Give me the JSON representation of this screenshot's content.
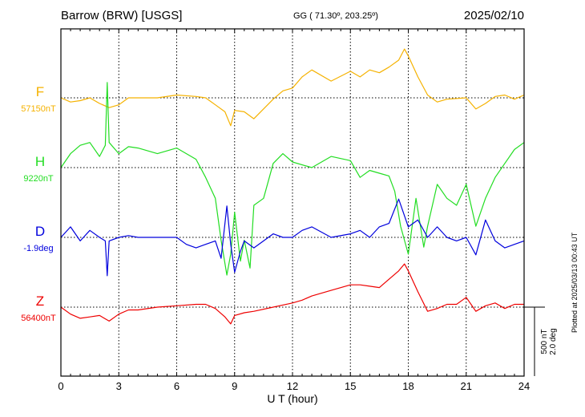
{
  "header": {
    "station": "Barrow (BRW)  [USGS]",
    "coords": "GG ( 71.30º, 203.25º)",
    "date": "2025/02/10"
  },
  "plotted_note": "Plotted at 2025/03/13 00:43 UT",
  "scale_bar": {
    "line1": "500 nT",
    "line2": "2.0 deg"
  },
  "chart_data": {
    "type": "line",
    "xlabel": "U T (hour)",
    "xlim": [
      0,
      24
    ],
    "x_ticks": [
      "0",
      "3",
      "6",
      "9",
      "12",
      "15",
      "18",
      "21",
      "24"
    ],
    "grid": true,
    "scale": "500 nT / 2.0 deg per bar",
    "series": [
      {
        "name": "F",
        "baseline_label": "57150nT",
        "color": "#f5b200",
        "unit": "nT",
        "baseline": 57150,
        "x": [
          0,
          0.5,
          1,
          1.5,
          2,
          2.5,
          3,
          3.5,
          4,
          5,
          6,
          7,
          7.5,
          8,
          8.5,
          8.8,
          9,
          9.5,
          10,
          11,
          11.5,
          12,
          12.5,
          13,
          14,
          15,
          15.5,
          16,
          16.5,
          17,
          17.5,
          17.8,
          18,
          18.5,
          19,
          19.5,
          20,
          21,
          21.5,
          22,
          22.5,
          23,
          23.5,
          24
        ],
        "values": [
          57150,
          57120,
          57130,
          57150,
          57110,
          57080,
          57100,
          57150,
          57150,
          57150,
          57170,
          57160,
          57150,
          57100,
          57050,
          56950,
          57060,
          57050,
          57000,
          57140,
          57200,
          57220,
          57300,
          57350,
          57270,
          57340,
          57300,
          57350,
          57330,
          57370,
          57420,
          57500,
          57450,
          57300,
          57170,
          57120,
          57140,
          57150,
          57070,
          57110,
          57160,
          57170,
          57140,
          57170
        ]
      },
      {
        "name": "H",
        "baseline_label": "9220nT",
        "color": "#22dd22",
        "unit": "nT",
        "baseline": 9220,
        "x": [
          0,
          0.5,
          1,
          1.5,
          2,
          2.3,
          2.4,
          2.5,
          3,
          3.5,
          4,
          5,
          6,
          7,
          7.5,
          8,
          8.3,
          8.6,
          8.8,
          9,
          9.3,
          9.5,
          9.8,
          10,
          10.5,
          11,
          11.5,
          12,
          13,
          14,
          15,
          15.5,
          16,
          16.5,
          17,
          17.3,
          17.6,
          18,
          18.4,
          18.8,
          19,
          19.5,
          20,
          20.5,
          21,
          21.5,
          22,
          22.5,
          23,
          23.5,
          24
        ],
        "values": [
          9220,
          9320,
          9380,
          9400,
          9300,
          9380,
          9830,
          9400,
          9320,
          9370,
          9360,
          9320,
          9360,
          9280,
          9150,
          9000,
          8700,
          8450,
          8600,
          8900,
          8550,
          8700,
          8500,
          8950,
          9000,
          9250,
          9320,
          9260,
          9220,
          9300,
          9270,
          9150,
          9200,
          9180,
          9160,
          9050,
          8800,
          8600,
          9000,
          8650,
          8800,
          9100,
          9000,
          8950,
          9100,
          8800,
          9000,
          9150,
          9250,
          9350,
          9400
        ]
      },
      {
        "name": "D",
        "baseline_label": "-1.9deg",
        "color": "#0000dd",
        "unit": "deg",
        "baseline": -1.9,
        "x": [
          0,
          0.5,
          1,
          1.5,
          2,
          2.3,
          2.4,
          2.5,
          3,
          3.5,
          4,
          5,
          6,
          6.5,
          7,
          7.5,
          8,
          8.3,
          8.6,
          8.8,
          9,
          9.3,
          9.5,
          10,
          10.5,
          11,
          11.5,
          12,
          12.5,
          13,
          14,
          15,
          15.5,
          16,
          16.5,
          17,
          17.5,
          18,
          18.5,
          19,
          19.5,
          20,
          20.5,
          21,
          21.5,
          22,
          22.5,
          23,
          23.5,
          24
        ],
        "values": [
          -1.9,
          -1.6,
          -2.0,
          -1.7,
          -1.9,
          -2.0,
          -3.0,
          -2.0,
          -1.9,
          -1.85,
          -1.9,
          -1.9,
          -1.9,
          -2.1,
          -2.2,
          -2.1,
          -2.0,
          -2.5,
          -1.0,
          -2.1,
          -2.9,
          -2.3,
          -2.0,
          -2.2,
          -2.0,
          -1.8,
          -1.9,
          -1.9,
          -1.7,
          -1.6,
          -1.9,
          -1.8,
          -1.7,
          -1.9,
          -1.6,
          -1.5,
          -0.8,
          -1.6,
          -1.4,
          -1.9,
          -1.6,
          -1.9,
          -2.0,
          -1.9,
          -2.4,
          -1.4,
          -2.0,
          -2.2,
          -2.1,
          -2.0
        ]
      },
      {
        "name": "Z",
        "baseline_label": "56400nT",
        "color": "#ee0000",
        "unit": "nT",
        "baseline": 56400,
        "x": [
          0,
          0.5,
          1,
          1.5,
          2,
          2.5,
          3,
          3.5,
          4,
          5,
          6,
          7,
          7.5,
          8,
          8.5,
          8.8,
          9,
          9.5,
          10,
          11,
          12,
          12.5,
          13,
          14,
          15,
          15.5,
          16,
          16.5,
          17,
          17.5,
          17.8,
          18,
          18.5,
          19,
          19.5,
          20,
          20.5,
          21,
          21.5,
          22,
          22.5,
          23,
          23.5,
          24
        ],
        "values": [
          56400,
          56350,
          56320,
          56330,
          56340,
          56300,
          56350,
          56380,
          56380,
          56400,
          56410,
          56420,
          56420,
          56390,
          56330,
          56280,
          56340,
          56360,
          56370,
          56400,
          56430,
          56450,
          56480,
          56520,
          56560,
          56560,
          56550,
          56540,
          56600,
          56660,
          56710,
          56660,
          56510,
          56370,
          56390,
          56420,
          56420,
          56470,
          56370,
          56410,
          56430,
          56390,
          56420,
          56420
        ]
      }
    ]
  }
}
